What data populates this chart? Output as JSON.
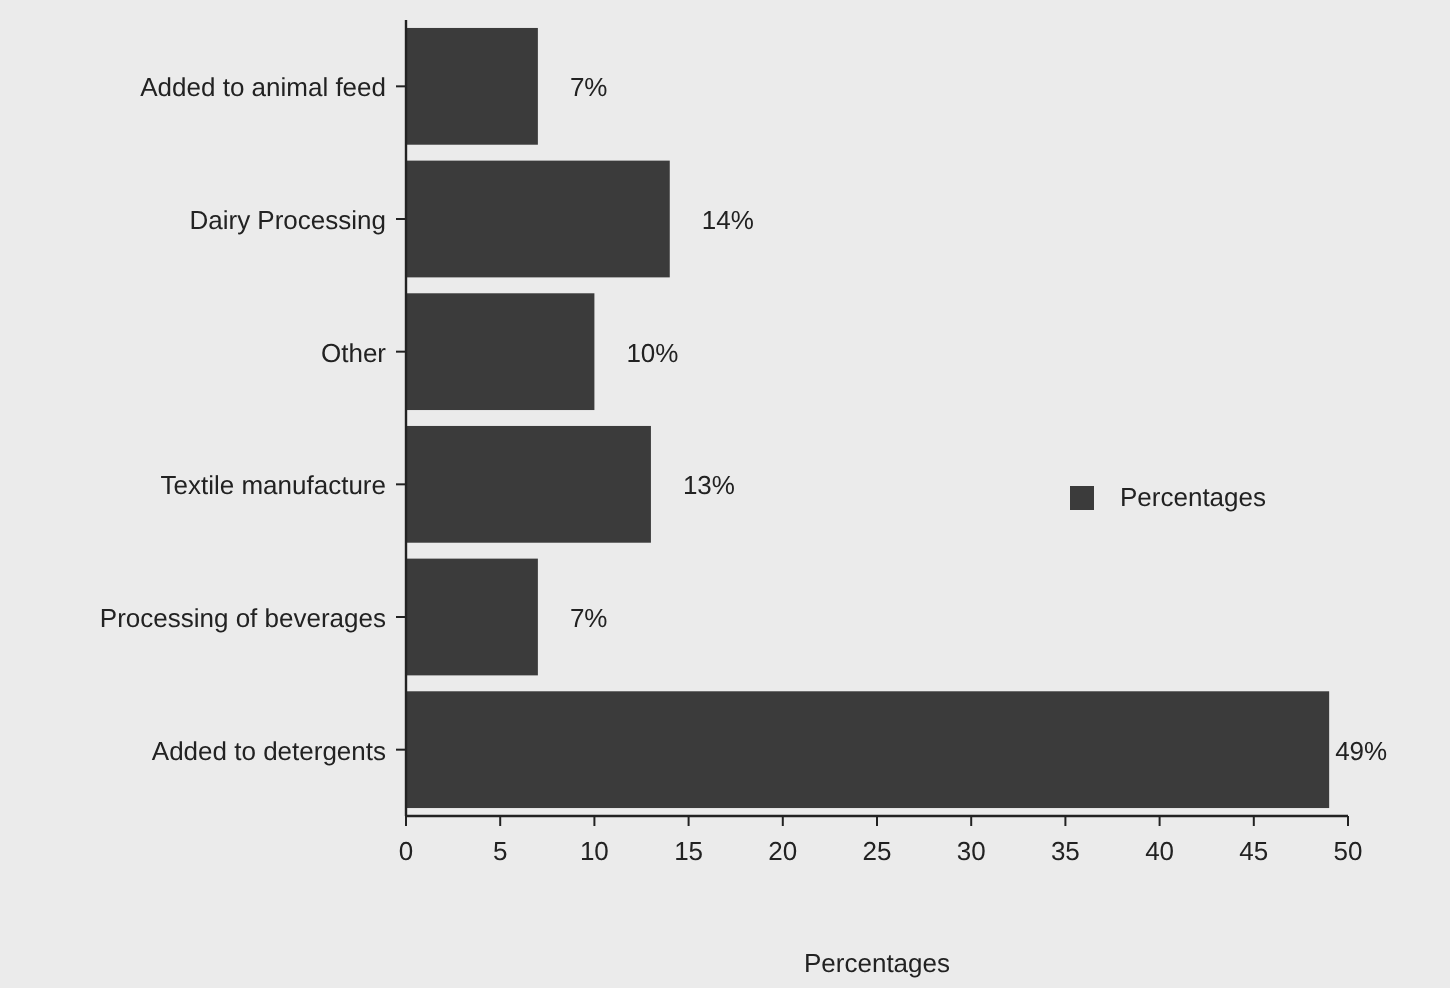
{
  "chart_data": {
    "type": "bar",
    "orientation": "horizontal",
    "xlabel": "Percentages",
    "categories": [
      "Added to animal feed",
      "Dairy Processing",
      "Other",
      "Textile manufacture",
      "Processing of beverages",
      "Added to detergents"
    ],
    "series": [
      {
        "name": "Percentages",
        "color": "#3b3b3b",
        "values": [
          7,
          14,
          10,
          13,
          7,
          49
        ],
        "value_labels": [
          "7%",
          "14%",
          "10%",
          "13%",
          "7%",
          "49%"
        ]
      }
    ],
    "xlim": [
      0,
      50
    ],
    "xticks": [
      0,
      5,
      10,
      15,
      20,
      25,
      30,
      35,
      40,
      45,
      50
    ],
    "grid": false,
    "legend": "right"
  }
}
